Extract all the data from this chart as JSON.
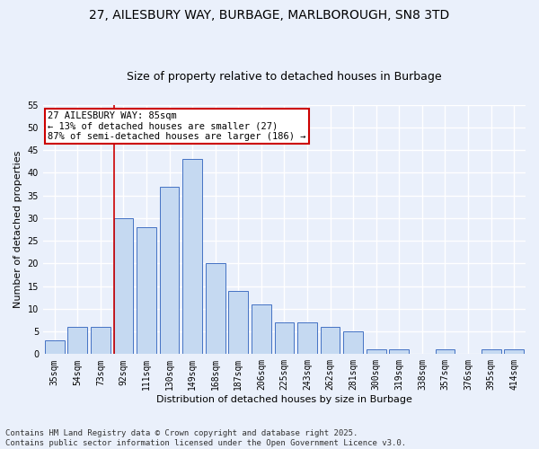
{
  "title": "27, AILESBURY WAY, BURBAGE, MARLBOROUGH, SN8 3TD",
  "subtitle": "Size of property relative to detached houses in Burbage",
  "xlabel": "Distribution of detached houses by size in Burbage",
  "ylabel": "Number of detached properties",
  "categories": [
    "35sqm",
    "54sqm",
    "73sqm",
    "92sqm",
    "111sqm",
    "130sqm",
    "149sqm",
    "168sqm",
    "187sqm",
    "206sqm",
    "225sqm",
    "243sqm",
    "262sqm",
    "281sqm",
    "300sqm",
    "319sqm",
    "338sqm",
    "357sqm",
    "376sqm",
    "395sqm",
    "414sqm"
  ],
  "values": [
    3,
    6,
    6,
    30,
    28,
    37,
    43,
    20,
    14,
    11,
    7,
    7,
    6,
    5,
    1,
    1,
    0,
    1,
    0,
    1,
    1
  ],
  "bar_color": "#c5d9f1",
  "bar_edge_color": "#4472c4",
  "background_color": "#eaf0fb",
  "grid_color": "#ffffff",
  "annotation_text": "27 AILESBURY WAY: 85sqm\n← 13% of detached houses are smaller (27)\n87% of semi-detached houses are larger (186) →",
  "annotation_box_color": "#ffffff",
  "annotation_box_edge_color": "#cc0000",
  "vline_x_index": 3,
  "vline_color": "#cc0000",
  "ylim": [
    0,
    55
  ],
  "yticks": [
    0,
    5,
    10,
    15,
    20,
    25,
    30,
    35,
    40,
    45,
    50,
    55
  ],
  "footer_text": "Contains HM Land Registry data © Crown copyright and database right 2025.\nContains public sector information licensed under the Open Government Licence v3.0.",
  "title_fontsize": 10,
  "subtitle_fontsize": 9,
  "label_fontsize": 8,
  "tick_fontsize": 7,
  "annotation_fontsize": 7.5,
  "footer_fontsize": 6.5
}
